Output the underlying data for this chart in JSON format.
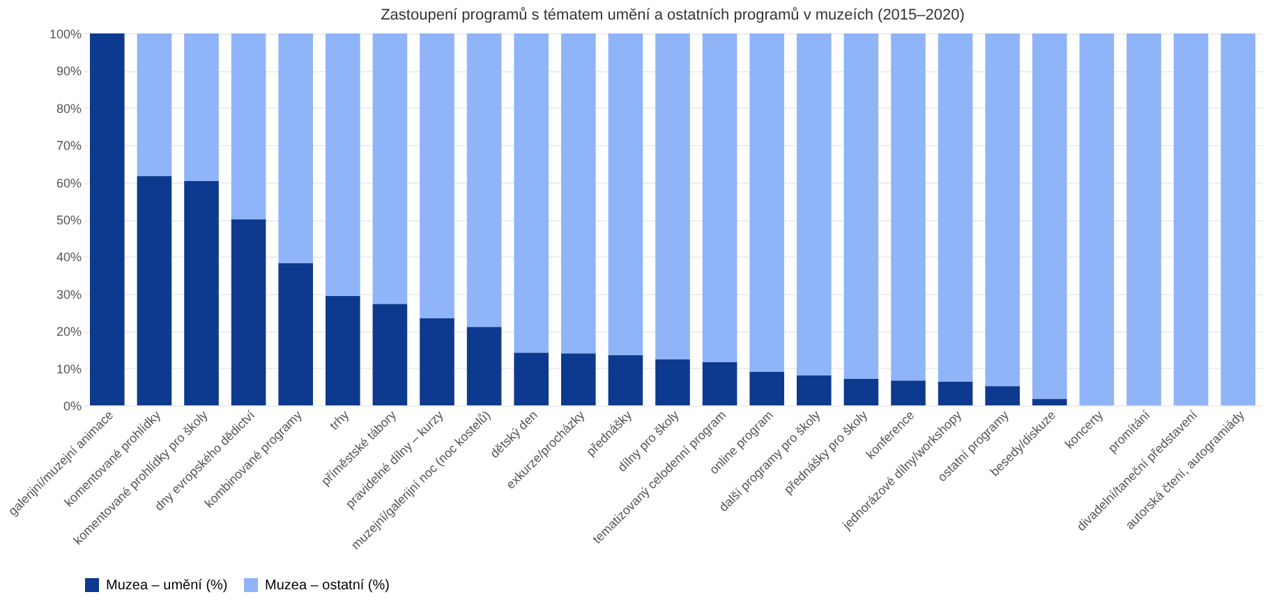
{
  "chart_data": {
    "type": "bar",
    "title": "Zastoupení programů s tématem umění a ostatních programů v muzeích (2015–2020)",
    "stacked": true,
    "categories": [
      "galerijní/muzejní animace",
      "komentované prohlídky",
      "komentované prohlídky pro školy",
      "dny evropského dědictví",
      "kombinované programy",
      "trhy",
      "příměstské tábory",
      "pravidelné dílny – kurzy",
      "muzejní/galerijní noc (noc kostelů)",
      "dětský den",
      "exkurze/procházky",
      "přednášky",
      "dílny pro školy",
      "tematizovaný celodenní program",
      "online program",
      "další programy pro školy",
      "přednášky pro školy",
      "konference",
      "jednorázové dílny/workshopy",
      "ostatní programy",
      "besedy/diskuze",
      "koncerty",
      "promítání",
      "divadelní/taneční představení",
      "autorská čtení, autogramiády"
    ],
    "series": [
      {
        "name": "Muzea – umění (%)",
        "color": "#0d3a8e",
        "values": [
          100,
          61.7,
          60.3,
          50,
          38.3,
          29.4,
          27.3,
          23.4,
          21.1,
          14.2,
          14,
          13.5,
          12.4,
          11.6,
          9.1,
          8.1,
          7.1,
          6.7,
          6.4,
          5.2,
          1.8,
          0,
          0,
          0,
          0
        ]
      },
      {
        "name": "Muzea – ostatní (%)",
        "color": "#8fb4f7",
        "values": [
          0,
          38.3,
          39.7,
          50,
          61.7,
          70.6,
          72.7,
          76.6,
          78.9,
          85.8,
          86,
          86.5,
          87.6,
          88.4,
          90.9,
          91.9,
          92.9,
          93.3,
          93.6,
          94.8,
          98.2,
          100,
          100,
          100,
          100
        ]
      }
    ],
    "ylim": [
      0,
      100
    ],
    "yticks": [
      {
        "value": 0,
        "label": "0%"
      },
      {
        "value": 10,
        "label": "10%"
      },
      {
        "value": 20,
        "label": "20%"
      },
      {
        "value": 30,
        "label": "30%"
      },
      {
        "value": 40,
        "label": "40%"
      },
      {
        "value": 50,
        "label": "50%"
      },
      {
        "value": 60,
        "label": "60%"
      },
      {
        "value": 70,
        "label": "70%"
      },
      {
        "value": 80,
        "label": "80%"
      },
      {
        "value": 90,
        "label": "90%"
      },
      {
        "value": 100,
        "label": "100%"
      }
    ],
    "grid": "y",
    "legend": "bottom"
  }
}
